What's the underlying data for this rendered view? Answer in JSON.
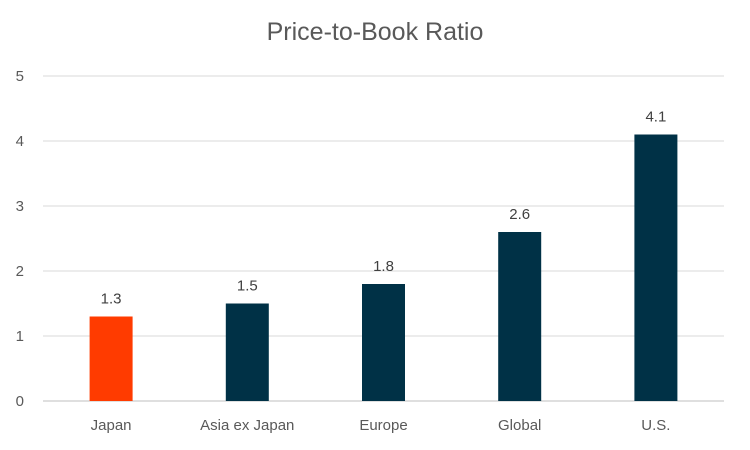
{
  "chart_data": {
    "type": "bar",
    "title": "Price-to-Book Ratio",
    "categories": [
      "Japan",
      "Asia ex Japan",
      "Europe",
      "Global",
      "U.S."
    ],
    "values": [
      1.3,
      1.5,
      1.8,
      2.6,
      4.1
    ],
    "data_labels": [
      "1.3",
      "1.5",
      "1.8",
      "2.6",
      "4.1"
    ],
    "bar_colors": [
      "#ff3b00",
      "#003146",
      "#003146",
      "#003146",
      "#003146"
    ],
    "ylim": [
      0,
      5
    ],
    "yticks": [
      "0",
      "1",
      "2",
      "3",
      "4",
      "5"
    ],
    "grid": true,
    "legend": "none"
  }
}
